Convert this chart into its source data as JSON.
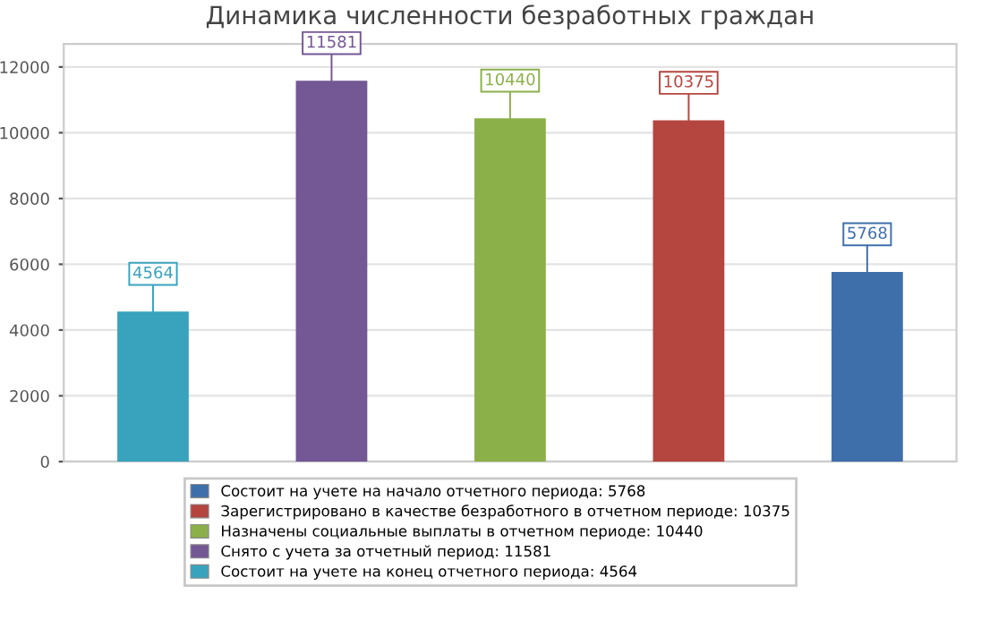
{
  "chart_data": {
    "type": "bar",
    "title": "Динамика численности безработных граждан",
    "categories": [
      null,
      null,
      null,
      null,
      null
    ],
    "series": [
      {
        "name": "Состоит на учете на начало отчетного периода: 5768",
        "color": "#3f6fab",
        "values": [
          null,
          null,
          null,
          null,
          5768
        ]
      },
      {
        "name": "Зарегистрировано в качестве безработного в отчетном периоде: 10375",
        "color": "#b5453f",
        "values": [
          null,
          null,
          null,
          10375,
          null
        ]
      },
      {
        "name": "Назначены социальные выплаты в отчетном периоде: 10440",
        "color": "#8cb049",
        "values": [
          null,
          null,
          10440,
          null,
          null
        ]
      },
      {
        "name": "Снято с учета за отчетный период: 11581",
        "color": "#745795",
        "values": [
          null,
          11581,
          null,
          null,
          null
        ]
      },
      {
        "name": "Состоит на учете на конец отчетного периода: 4564",
        "color": "#39a3bd",
        "values": [
          4564,
          null,
          null,
          null,
          null
        ]
      }
    ],
    "ylim": [
      0,
      12700
    ],
    "yticks": [
      0,
      2000,
      4000,
      6000,
      8000,
      10000,
      12000
    ],
    "grid": "y",
    "legend": "bottom",
    "data_labels": true
  }
}
